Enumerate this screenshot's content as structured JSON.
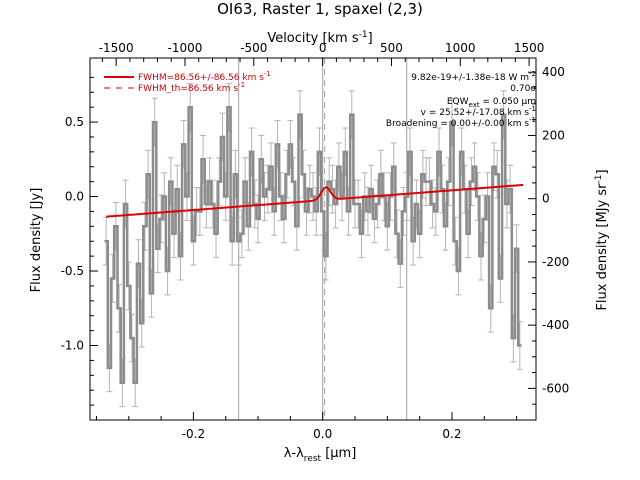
{
  "chart_data": {
    "type": "line",
    "title": "OI63, Raster 1, spaxel (2,3)",
    "xlabel": "λ-λrest [μm]",
    "xlabel_parts": {
      "lambda": "λ-λ",
      "sub": "rest",
      "unit": " [μm]"
    },
    "ylabel": "Flux density [Jy]",
    "top_xlabel": "Velocity [km s-1]",
    "top_xlabel_parts": {
      "base": "Velocity [km s",
      "sup": "-1",
      "end": "]"
    },
    "right_ylabel": "Flux density [MJy sr-1]",
    "right_ylabel_parts": {
      "base": "Flux density [MJy sr",
      "sup": "-1",
      "end": "]"
    },
    "xlim": [
      -0.36,
      0.33
    ],
    "ylim": [
      -1.5,
      0.93
    ],
    "top_xlim": [
      -1690,
      1550
    ],
    "right_ylim": [
      -700,
      445
    ],
    "x_ticks": [
      "-0.2",
      "0.0",
      "0.2"
    ],
    "x_tick_values": [
      -0.2,
      0.0,
      0.2
    ],
    "y_ticks": [
      "-1.0",
      "-0.5",
      "0.0",
      "0.5"
    ],
    "y_tick_values": [
      -1.0,
      -0.5,
      0.0,
      0.5
    ],
    "top_ticks": [
      "-1500",
      "-1000",
      "-500",
      "0",
      "500",
      "1000",
      "1500"
    ],
    "top_tick_values": [
      -1500,
      -1000,
      -500,
      0,
      500,
      1000,
      1500
    ],
    "right_ticks": [
      "-600",
      "-400",
      "-200",
      "0",
      "200",
      "400"
    ],
    "right_tick_values": [
      -600,
      -400,
      -200,
      0,
      200,
      400
    ],
    "vertical_lines": [
      -0.13,
      0.0,
      0.13
    ],
    "dashed_vertical_line": 0.003,
    "colors": {
      "data": "#8c8c8c",
      "error": "#b4b4b4",
      "fit": "#dd0000",
      "vline": "#a0a0a0"
    },
    "series": [
      {
        "name": "data",
        "step": true,
        "x": [
          -0.335,
          -0.33,
          -0.325,
          -0.32,
          -0.315,
          -0.31,
          -0.305,
          -0.3,
          -0.295,
          -0.29,
          -0.285,
          -0.28,
          -0.275,
          -0.27,
          -0.265,
          -0.26,
          -0.255,
          -0.25,
          -0.245,
          -0.24,
          -0.235,
          -0.23,
          -0.225,
          -0.22,
          -0.215,
          -0.21,
          -0.205,
          -0.2,
          -0.195,
          -0.19,
          -0.185,
          -0.18,
          -0.175,
          -0.17,
          -0.165,
          -0.16,
          -0.155,
          -0.15,
          -0.145,
          -0.14,
          -0.135,
          -0.13,
          -0.125,
          -0.12,
          -0.115,
          -0.11,
          -0.105,
          -0.1,
          -0.095,
          -0.09,
          -0.085,
          -0.08,
          -0.075,
          -0.07,
          -0.065,
          -0.06,
          -0.055,
          -0.05,
          -0.045,
          -0.04,
          -0.035,
          -0.03,
          -0.025,
          -0.02,
          -0.015,
          -0.01,
          -0.005,
          0.0,
          0.005,
          0.01,
          0.015,
          0.02,
          0.025,
          0.03,
          0.035,
          0.04,
          0.045,
          0.05,
          0.055,
          0.06,
          0.065,
          0.07,
          0.075,
          0.08,
          0.085,
          0.09,
          0.095,
          0.1,
          0.105,
          0.11,
          0.115,
          0.12,
          0.125,
          0.13,
          0.135,
          0.14,
          0.145,
          0.15,
          0.155,
          0.16,
          0.165,
          0.17,
          0.175,
          0.18,
          0.185,
          0.19,
          0.195,
          0.2,
          0.205,
          0.21,
          0.215,
          0.22,
          0.225,
          0.23,
          0.235,
          0.24,
          0.245,
          0.25,
          0.255,
          0.26,
          0.265,
          0.27,
          0.275,
          0.28,
          0.285,
          0.29,
          0.295,
          0.3,
          0.305
        ],
        "y": [
          -0.3,
          -1.15,
          -0.55,
          -0.2,
          -0.75,
          -1.25,
          -0.05,
          -0.6,
          -0.95,
          -1.25,
          -0.45,
          -0.85,
          -0.2,
          0.15,
          -0.65,
          0.5,
          -0.35,
          -0.15,
          0.0,
          -0.5,
          0.1,
          -0.25,
          0.05,
          -0.4,
          0.35,
          0.0,
          0.6,
          -0.3,
          -0.1,
          -0.1,
          0.25,
          -0.05,
          0.1,
          -0.05,
          -0.25,
          0.1,
          0.4,
          0.0,
          0.6,
          -0.3,
          0.15,
          -0.3,
          -0.25,
          0.1,
          -0.2,
          0.3,
          -0.05,
          -0.15,
          0.25,
          0.0,
          0.05,
          0.2,
          -0.1,
          0.35,
          0.0,
          -0.15,
          0.15,
          0.35,
          0.1,
          -0.2,
          0.55,
          0.15,
          -0.1,
          0.05,
          0.0,
          -0.1,
          0.3,
          -0.1,
          -0.4,
          0.1,
          0.05,
          -0.05,
          0.2,
          0.0,
          0.3,
          -0.1,
          0.55,
          -0.05,
          -0.05,
          -0.25,
          0.0,
          -0.1,
          0.05,
          -0.15,
          -0.05,
          0.15,
          0.0,
          -0.2,
          0.0,
          0.2,
          -0.25,
          -0.45,
          -0.1,
          0.0,
          0.3,
          -0.3,
          -0.05,
          -0.25,
          0.15,
          0.1,
          0.1,
          -0.05,
          -0.1,
          0.3,
          0.05,
          -0.2,
          0.1,
          0.5,
          -0.3,
          -0.5,
          0.3,
          0.05,
          -0.25,
          0.1,
          0.2,
          0.0,
          -0.4,
          -0.15,
          0.0,
          -0.75,
          0.2,
          0.15,
          -0.55,
          0.55,
          -0.05,
          0.05,
          -0.95,
          -0.35,
          -1.0
        ],
        "err": 0.16
      },
      {
        "name": "FWHM=86.56+/-86.56 km s-1",
        "type": "fit",
        "x": [
          -0.335,
          0.31
        ],
        "y": [
          -0.135,
          0.078
        ],
        "peak_center": 0.005,
        "peak_amplitude": 0.085,
        "peak_sigma": 0.0072
      },
      {
        "name": "FWHM_th=86.56 km s-1",
        "type": "fit_dashed"
      }
    ],
    "legend": {
      "placement": "top-left",
      "entries": [
        {
          "base": "FWHM=86.56+/-86.56 km s",
          "sup": "-1",
          "style": "solid"
        },
        {
          "base": "FWHM_th=86.56 km s",
          "sup": "-1",
          "style": "dashed"
        }
      ]
    },
    "annotations": {
      "line1": {
        "base": "9.82e-19+/-1.38e-18 W m",
        "sup": "-2"
      },
      "line2": {
        "base": "0.70σ"
      },
      "line3": {
        "base": "EQW",
        "sub": "ext",
        "end": " = 0.050 μm"
      },
      "line4": {
        "base": "v = 25.52+/-17.08 km s",
        "sup": "-1"
      },
      "line5": {
        "base": "Broadening = 0.00+/-0.00 km s",
        "sup": "-1"
      }
    }
  }
}
